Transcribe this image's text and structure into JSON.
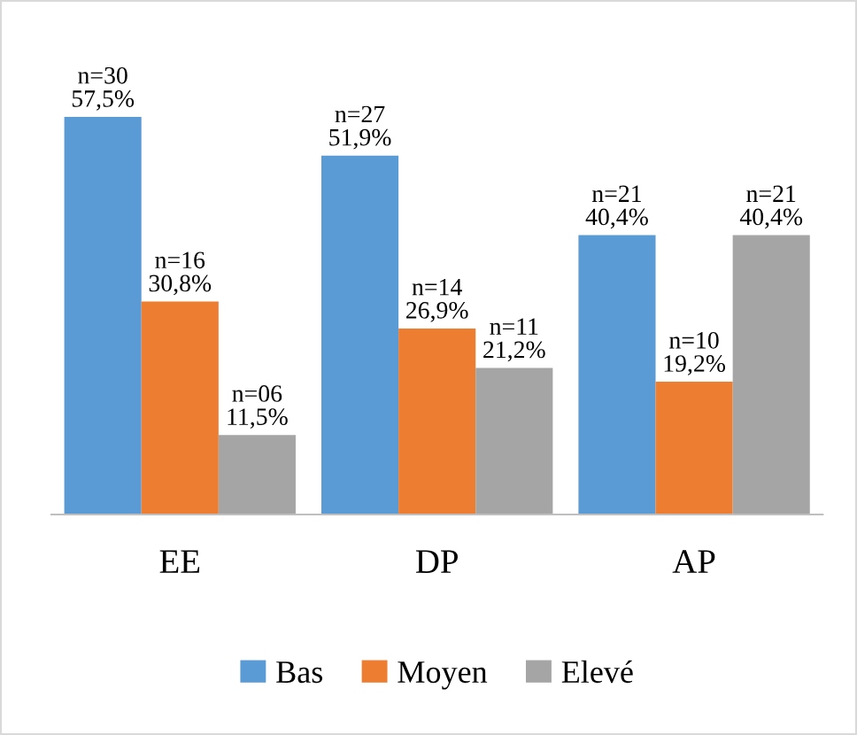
{
  "chart_data": {
    "type": "bar",
    "categories": [
      "EE",
      "DP",
      "AP"
    ],
    "series": [
      {
        "name": "Bas",
        "color": "#5b9bd5",
        "values": [
          57.5,
          51.9,
          40.4
        ],
        "value_labels": [
          "n=30\n57,5%",
          "n=27\n51,9%",
          "n=21\n40,4%"
        ]
      },
      {
        "name": "Moyen",
        "color": "#ed7d31",
        "values": [
          30.8,
          26.9,
          19.2
        ],
        "value_labels": [
          "n=16\n30,8%",
          "n=14\n26,9%",
          "n=10\n19,2%"
        ]
      },
      {
        "name": "Elevé",
        "color": "#a5a5a5",
        "values": [
          11.5,
          21.2,
          40.4
        ],
        "value_labels": [
          "n=06\n11,5%",
          "n=11\n21,2%",
          "n=21\n40,4%"
        ]
      }
    ],
    "legend": "bottom",
    "grid": false
  }
}
